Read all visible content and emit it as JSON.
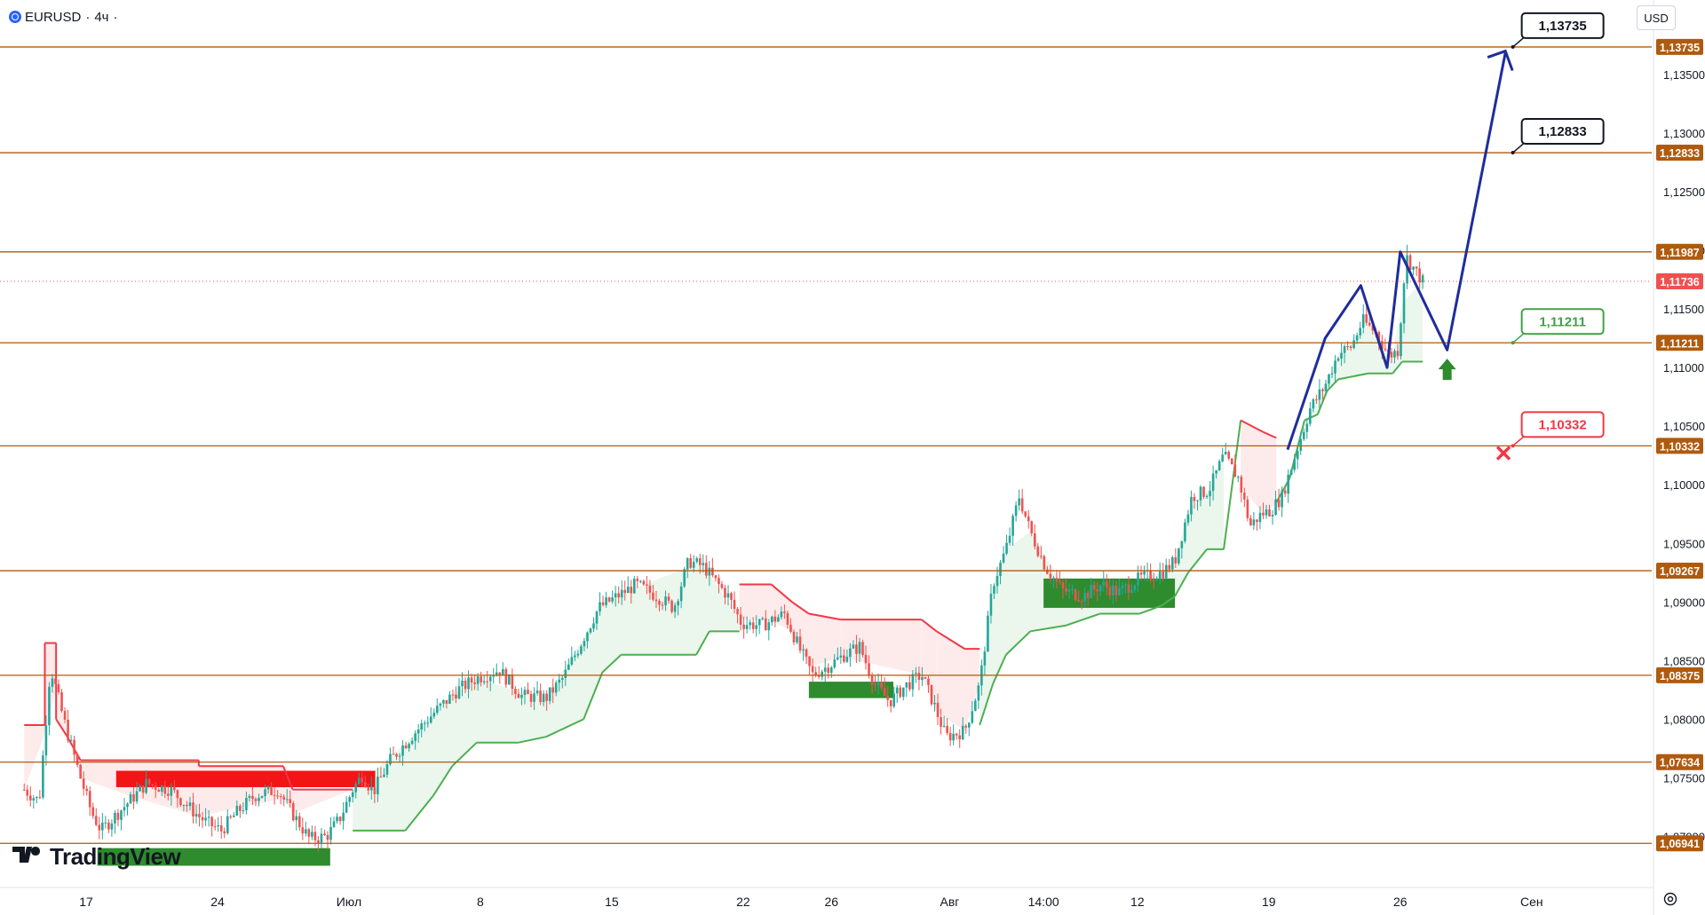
{
  "header": {
    "symbol": "EURUSD",
    "separator": "·",
    "interval": "4ч",
    "trailing": "·"
  },
  "currency_button": "USD",
  "brand": {
    "name": "TradingView",
    "mark": "17"
  },
  "colors": {
    "level_line": "#b05a0e",
    "level_label_bg": "#b05a0e",
    "current_price_bg": "#f05050",
    "current_price_line": "#f05050",
    "candle_up": "#26a69a",
    "candle_down": "#ef5350",
    "supertrend_up": "#4caf50",
    "supertrend_down": "#f23645",
    "supertrend_up_fill": "#e8f5e9",
    "supertrend_down_fill": "#fde8e8",
    "forecast_path": "#1e2d9c",
    "demand_zone": "#2e8b2e",
    "supply_zone": "#f21515",
    "target_callout_border": "#131722",
    "support_callout": "#43a047",
    "stop_callout": "#f23645"
  },
  "chart_data": {
    "type": "candlestick",
    "symbol": "EURUSD",
    "interval": "4ч",
    "currency": "USD",
    "y_range": [
      1.0664,
      1.1406
    ],
    "price_axis_ticks": [
      "1,07000",
      "1,07500",
      "1,08000",
      "1,08500",
      "1,09000",
      "1,09500",
      "1,10000",
      "1,10500",
      "1,11000",
      "1,11500",
      "1,12000",
      "1,12500",
      "1,13000",
      "1,13500"
    ],
    "price_axis_tick_values": [
      1.07,
      1.075,
      1.08,
      1.085,
      1.09,
      1.095,
      1.1,
      1.105,
      1.11,
      1.115,
      1.12,
      1.125,
      1.13,
      1.135
    ],
    "time_axis_labels": [
      {
        "label": "17",
        "day": 0
      },
      {
        "label": "24",
        "day": 7
      },
      {
        "label": "Июл",
        "day": 14
      },
      {
        "label": "8",
        "day": 21
      },
      {
        "label": "15",
        "day": 28
      },
      {
        "label": "22",
        "day": 35
      },
      {
        "label": "26",
        "day": 39.7
      },
      {
        "label": "Авг",
        "day": 46
      },
      {
        "label": "14:00",
        "day": 51
      },
      {
        "label": "12",
        "day": 56
      },
      {
        "label": "19",
        "day": 63
      },
      {
        "label": "26",
        "day": 70
      },
      {
        "label": "Сен",
        "day": 77
      }
    ],
    "horizontal_levels": [
      {
        "price": 1.13735,
        "label": "1,13735"
      },
      {
        "price": 1.12833,
        "label": "1,12833"
      },
      {
        "price": 1.11987,
        "label": "1,11987"
      },
      {
        "price": 1.11211,
        "label": "1,11211"
      },
      {
        "price": 1.10332,
        "label": "1,10332"
      },
      {
        "price": 1.09267,
        "label": "1,09267"
      },
      {
        "price": 1.08375,
        "label": "1,08375"
      },
      {
        "price": 1.07634,
        "label": "1,07634"
      },
      {
        "price": 1.06941,
        "label": "1,06941"
      }
    ],
    "current_price": {
      "price": 1.11736,
      "label": "1,11736"
    },
    "price_path": [
      [
        -3.3,
        1.074
      ],
      [
        -2.5,
        1.073
      ],
      [
        -1.9,
        1.0845
      ],
      [
        -1.2,
        1.08
      ],
      [
        -0.3,
        1.075
      ],
      [
        0.3,
        1.072
      ],
      [
        0.8,
        1.0705
      ],
      [
        2.0,
        1.0725
      ],
      [
        3.2,
        1.0745
      ],
      [
        4.5,
        1.074
      ],
      [
        5.8,
        1.072
      ],
      [
        6.4,
        1.0712
      ],
      [
        7.2,
        1.0705
      ],
      [
        8.0,
        1.072
      ],
      [
        9.0,
        1.0735
      ],
      [
        10.2,
        1.074
      ],
      [
        11.3,
        1.0712
      ],
      [
        11.9,
        1.0698
      ],
      [
        12.8,
        1.07
      ],
      [
        13.5,
        1.0715
      ],
      [
        14.2,
        1.074
      ],
      [
        14.7,
        1.0752
      ],
      [
        15.3,
        1.0738
      ],
      [
        16.2,
        1.0765
      ],
      [
        17.3,
        1.0785
      ],
      [
        18.5,
        1.0805
      ],
      [
        19.8,
        1.0825
      ],
      [
        20.8,
        1.0835
      ],
      [
        22.0,
        1.0842
      ],
      [
        23.2,
        1.082
      ],
      [
        24.5,
        1.0818
      ],
      [
        25.4,
        1.0835
      ],
      [
        26.2,
        1.086
      ],
      [
        27.3,
        1.0895
      ],
      [
        28.3,
        1.0905
      ],
      [
        29.3,
        1.0915
      ],
      [
        30.4,
        1.0905
      ],
      [
        31.3,
        1.0895
      ],
      [
        32.1,
        1.0935
      ],
      [
        32.9,
        1.093
      ],
      [
        33.5,
        1.0918
      ],
      [
        34.2,
        1.0905
      ],
      [
        34.9,
        1.0882
      ],
      [
        36.0,
        1.088
      ],
      [
        37.2,
        1.089
      ],
      [
        38.0,
        1.086
      ],
      [
        38.7,
        1.0838
      ],
      [
        39.5,
        1.0845
      ],
      [
        40.4,
        1.0855
      ],
      [
        41.2,
        1.0862
      ],
      [
        42.0,
        1.083
      ],
      [
        42.8,
        1.0815
      ],
      [
        43.6,
        1.0828
      ],
      [
        44.5,
        1.0838
      ],
      [
        45.1,
        1.0815
      ],
      [
        45.8,
        1.0785
      ],
      [
        46.8,
        1.079
      ],
      [
        47.6,
        1.083
      ],
      [
        48.3,
        1.0915
      ],
      [
        49.0,
        1.0945
      ],
      [
        49.7,
        1.099
      ],
      [
        50.3,
        1.096
      ],
      [
        51.1,
        1.093
      ],
      [
        52.0,
        1.091
      ],
      [
        53.1,
        1.0905
      ],
      [
        54.1,
        1.0915
      ],
      [
        55.0,
        1.0908
      ],
      [
        56.1,
        1.092
      ],
      [
        57.3,
        1.0925
      ],
      [
        58.0,
        1.0935
      ],
      [
        58.9,
        1.099
      ],
      [
        59.8,
        1.0995
      ],
      [
        60.6,
        1.1025
      ],
      [
        61.4,
        1.1005
      ],
      [
        62.0,
        1.0965
      ],
      [
        62.6,
        1.0975
      ],
      [
        63.1,
        1.0978
      ],
      [
        63.7,
        1.099
      ],
      [
        64.4,
        1.1025
      ],
      [
        65.2,
        1.1065
      ],
      [
        66.0,
        1.1085
      ],
      [
        66.7,
        1.1112
      ],
      [
        67.4,
        1.1118
      ],
      [
        68.0,
        1.114
      ],
      [
        68.7,
        1.113
      ],
      [
        69.4,
        1.111
      ],
      [
        69.9,
        1.1115
      ],
      [
        70.3,
        1.1195
      ],
      [
        70.9,
        1.118
      ],
      [
        71.2,
        1.11736
      ]
    ],
    "supertrend": [
      [
        -3.3,
        1.0795,
        "down"
      ],
      [
        -2.2,
        1.0795,
        "down"
      ],
      [
        -2.2,
        1.0865,
        "down"
      ],
      [
        -1.6,
        1.0865,
        "down"
      ],
      [
        -1.6,
        1.08,
        "down"
      ],
      [
        -1.0,
        1.0785,
        "down"
      ],
      [
        -0.3,
        1.0765,
        "down"
      ],
      [
        2.5,
        1.0765,
        "down"
      ],
      [
        6.0,
        1.0765,
        "down"
      ],
      [
        6.0,
        1.076,
        "down"
      ],
      [
        10.5,
        1.076,
        "down"
      ],
      [
        11.0,
        1.074,
        "down"
      ],
      [
        14.2,
        1.074,
        "down"
      ],
      [
        14.2,
        1.0705,
        "up"
      ],
      [
        17.0,
        1.0705,
        "up"
      ],
      [
        18.5,
        1.0735,
        "up"
      ],
      [
        19.5,
        1.076,
        "up"
      ],
      [
        20.8,
        1.078,
        "up"
      ],
      [
        23.0,
        1.078,
        "up"
      ],
      [
        24.5,
        1.0785,
        "up"
      ],
      [
        26.5,
        1.08,
        "up"
      ],
      [
        27.5,
        1.084,
        "up"
      ],
      [
        28.5,
        1.0855,
        "up"
      ],
      [
        32.5,
        1.0855,
        "up"
      ],
      [
        33.2,
        1.0875,
        "up"
      ],
      [
        34.8,
        1.0875,
        "up"
      ],
      [
        34.8,
        1.0915,
        "down"
      ],
      [
        36.5,
        1.0915,
        "down"
      ],
      [
        37.6,
        1.09,
        "down"
      ],
      [
        38.5,
        1.089,
        "down"
      ],
      [
        40.2,
        1.0885,
        "down"
      ],
      [
        44.5,
        1.0885,
        "down"
      ],
      [
        45.3,
        1.0875,
        "down"
      ],
      [
        46.8,
        1.086,
        "down"
      ],
      [
        47.6,
        1.086,
        "down"
      ],
      [
        47.6,
        1.0795,
        "up"
      ],
      [
        48.3,
        1.083,
        "up"
      ],
      [
        49.0,
        1.0855,
        "up"
      ],
      [
        50.3,
        1.0875,
        "up"
      ],
      [
        52.2,
        1.088,
        "up"
      ],
      [
        54.0,
        1.089,
        "up"
      ],
      [
        56.1,
        1.089,
        "up"
      ],
      [
        57.3,
        1.0897,
        "up"
      ],
      [
        58.0,
        1.0905,
        "up"
      ],
      [
        58.7,
        1.0925,
        "up"
      ],
      [
        59.7,
        1.0945,
        "up"
      ],
      [
        60.6,
        1.0945,
        "up"
      ],
      [
        61.5,
        1.1055,
        "down"
      ],
      [
        62.7,
        1.1045,
        "down"
      ],
      [
        63.4,
        1.104,
        "down"
      ],
      [
        63.4,
        1.0985,
        "up"
      ],
      [
        64.1,
        1.1005,
        "up"
      ],
      [
        64.9,
        1.1055,
        "up"
      ],
      [
        65.6,
        1.106,
        "up"
      ],
      [
        66.1,
        1.108,
        "up"
      ],
      [
        66.7,
        1.109,
        "up"
      ],
      [
        68.3,
        1.1095,
        "up"
      ],
      [
        69.6,
        1.1095,
        "up"
      ],
      [
        70.1,
        1.1105,
        "up"
      ],
      [
        71.2,
        1.1105,
        "up"
      ]
    ],
    "zones": [
      {
        "kind": "supply",
        "day_from": 1.6,
        "day_to": 15.4,
        "price_from": 1.0742,
        "price_to": 1.0756
      },
      {
        "kind": "demand",
        "day_from": 0.6,
        "day_to": 13.0,
        "price_from": 1.0675,
        "price_to": 1.069
      },
      {
        "kind": "demand",
        "day_from": 38.5,
        "day_to": 43.0,
        "price_from": 1.0818,
        "price_to": 1.0832
      },
      {
        "kind": "demand",
        "day_from": 51.0,
        "day_to": 58.0,
        "price_from": 1.0895,
        "price_to": 1.092
      }
    ],
    "forecast_path": [
      [
        64.0,
        1.103
      ],
      [
        66.0,
        1.1125
      ],
      [
        67.9,
        1.117
      ],
      [
        69.3,
        1.11
      ],
      [
        70.0,
        1.11987
      ],
      [
        72.5,
        1.1115
      ],
      [
        75.6,
        1.13685
      ]
    ],
    "annotations": [
      {
        "kind": "target",
        "label": "1,13735",
        "day": 76.0,
        "price": 1.13735
      },
      {
        "kind": "target",
        "label": "1,12833",
        "day": 76.0,
        "price": 1.12833
      },
      {
        "kind": "support",
        "label": "1,11211",
        "day": 76.0,
        "price": 1.11211
      },
      {
        "kind": "stop",
        "label": "1,10332",
        "day": 76.0,
        "price": 1.10332
      },
      {
        "kind": "long_arrow",
        "day": 72.5,
        "price": 1.11
      },
      {
        "kind": "stop_cross",
        "day": 75.5,
        "price": 1.1027
      }
    ]
  }
}
